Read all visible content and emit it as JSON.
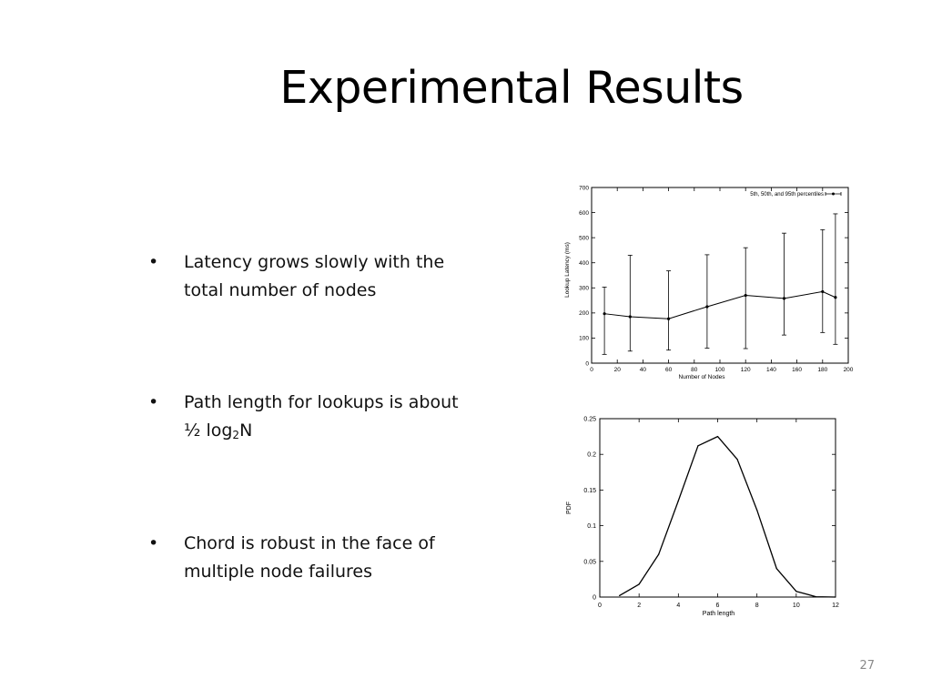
{
  "slide": {
    "title": "Experimental Results",
    "page_number": "27"
  },
  "bullets": [
    {
      "marker": "•",
      "lines": [
        "Latency grows slowly with the",
        "total number of nodes"
      ]
    },
    {
      "marker": "•",
      "line1": "Path length for lookups is about",
      "line2_prefix": "½ log",
      "line2_sub": "2",
      "line2_suffix": "N"
    },
    {
      "marker": "•",
      "lines": [
        "Chord is robust in the face of",
        "multiple node failures"
      ]
    }
  ],
  "chart_data": [
    {
      "type": "line",
      "subtype": "errorbar",
      "xlabel": "Number of Nodes",
      "ylabel": "Lookup Latency (ms)",
      "xlim": [
        0,
        200
      ],
      "ylim": [
        0,
        700
      ],
      "xticks": [
        0,
        20,
        40,
        60,
        80,
        100,
        120,
        140,
        160,
        180,
        200
      ],
      "yticks": [
        0,
        100,
        200,
        300,
        400,
        500,
        600,
        700
      ],
      "legend": "top-right",
      "grid": false,
      "series": [
        {
          "name": "5th, 50th, and 95th percentiles",
          "x": [
            10,
            30,
            60,
            90,
            120,
            150,
            180,
            190
          ],
          "y": [
            197,
            185,
            177,
            225,
            270,
            258,
            285,
            262
          ],
          "low": [
            35,
            48,
            52,
            60,
            58,
            112,
            122,
            75
          ],
          "high": [
            303,
            430,
            368,
            432,
            460,
            518,
            532,
            595
          ]
        }
      ]
    },
    {
      "type": "line",
      "xlabel": "Path length",
      "ylabel": "PDF",
      "xlim": [
        0,
        12
      ],
      "ylim": [
        0,
        0.25
      ],
      "xticks": [
        0,
        2,
        4,
        6,
        8,
        10,
        12
      ],
      "yticks": [
        0,
        0.05,
        0.1,
        0.15,
        0.2,
        0.25
      ],
      "grid": false,
      "series": [
        {
          "x": [
            1,
            2,
            3,
            4,
            5,
            6,
            7,
            8,
            9,
            10,
            11,
            12
          ],
          "y": [
            0.002,
            0.018,
            0.06,
            0.135,
            0.212,
            0.225,
            0.193,
            0.122,
            0.04,
            0.008,
            0.0005,
            0
          ]
        }
      ]
    }
  ]
}
